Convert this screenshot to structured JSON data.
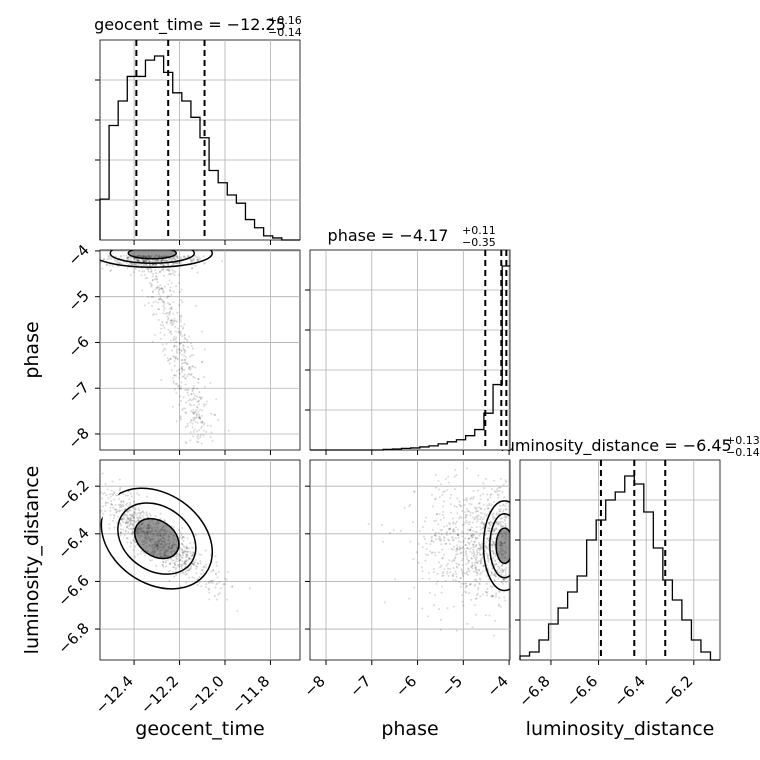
{
  "chart_data": {
    "type": "corner",
    "parameters": [
      "geocent_time",
      "phase",
      "luminosity_distance"
    ],
    "grid": true,
    "ranges": {
      "geocent_time": [
        -12.55,
        -11.67
      ],
      "phase": [
        -8.35,
        -3.98
      ],
      "luminosity_distance": [
        -6.93,
        -6.09
      ]
    },
    "ticks": {
      "geocent_time": {
        "values": [
          -12.4,
          -12.2,
          -12.0,
          -11.8
        ],
        "labels": [
          "−12.4",
          "−12.2",
          "−12.0",
          "−11.8"
        ]
      },
      "phase": {
        "values": [
          -8,
          -7,
          -6,
          -5,
          -4
        ],
        "labels": [
          "−8",
          "−7",
          "−6",
          "−5",
          "−4"
        ]
      },
      "luminosity_distance": {
        "values": [
          -6.8,
          -6.6,
          -6.4,
          -6.2
        ],
        "labels": [
          "−6.8",
          "−6.6",
          "−6.4",
          "−6.2"
        ]
      }
    },
    "titles": {
      "geocent_time": {
        "prefix": "geocent_time = −12.25",
        "sup": "+0.16",
        "sub": "−0.14"
      },
      "phase": {
        "prefix": "phase = −4.17",
        "sup": "+0.11",
        "sub": "−0.35"
      },
      "luminosity_distance": {
        "prefix": "luminosity_distance = −6.45",
        "sup": "+0.13",
        "sub": "−0.14"
      }
    },
    "quantiles": {
      "geocent_time": [
        -12.39,
        -12.25,
        -12.09
      ],
      "phase": [
        -4.52,
        -4.17,
        -4.06
      ],
      "luminosity_distance": [
        -6.59,
        -6.45,
        -6.32
      ]
    },
    "histograms": {
      "geocent_time": {
        "edges": [
          -12.55,
          -12.51,
          -12.47,
          -12.43,
          -12.39,
          -12.35,
          -12.31,
          -12.27,
          -12.23,
          -12.19,
          -12.15,
          -12.11,
          -12.07,
          -12.03,
          -11.99,
          -11.95,
          -11.91,
          -11.87,
          -11.83,
          -11.79,
          -11.75,
          -11.71,
          -11.67
        ],
        "counts": [
          10,
          28,
          34,
          40,
          40,
          44,
          45,
          41,
          36,
          34,
          30,
          25,
          17,
          14,
          11,
          9,
          5,
          3,
          1,
          0.5,
          0,
          0
        ]
      },
      "phase": {
        "edges": [
          -8.35,
          -8.15,
          -7.95,
          -7.75,
          -7.55,
          -7.35,
          -7.15,
          -6.95,
          -6.75,
          -6.55,
          -6.35,
          -6.15,
          -5.95,
          -5.75,
          -5.55,
          -5.35,
          -5.15,
          -4.95,
          -4.75,
          -4.55,
          -4.35,
          -4.15,
          -3.98
        ],
        "counts": [
          0,
          0,
          0,
          0,
          0,
          0,
          0,
          0,
          0.3,
          0.5,
          0.8,
          1,
          1.5,
          2,
          3,
          4,
          5,
          7,
          10,
          18,
          32,
          90
        ]
      },
      "luminosity_distance": {
        "edges": [
          -6.93,
          -6.89,
          -6.85,
          -6.81,
          -6.77,
          -6.73,
          -6.69,
          -6.65,
          -6.61,
          -6.57,
          -6.53,
          -6.49,
          -6.45,
          -6.41,
          -6.37,
          -6.33,
          -6.29,
          -6.25,
          -6.21,
          -6.17,
          -6.13,
          -6.09
        ],
        "counts": [
          1,
          2,
          5,
          9,
          13,
          17,
          21,
          30,
          35,
          40,
          42,
          46,
          44,
          37,
          28,
          20,
          15,
          10,
          5,
          2,
          0
        ]
      }
    },
    "scatter_2d": [
      {
        "x": "geocent_time",
        "y": "phase",
        "center": [
          -12.32,
          -4.05
        ],
        "contours": "horizontal band near phase −4 with a tail toward phase −8 around geocent_time −12.1"
      },
      {
        "x": "geocent_time",
        "y": "luminosity_distance",
        "center": [
          -12.3,
          -6.42
        ],
        "correlation": "negative"
      },
      {
        "x": "phase",
        "y": "luminosity_distance",
        "center": [
          -4.1,
          -6.45
        ],
        "contours": "concentrated at phase −4"
      }
    ]
  }
}
